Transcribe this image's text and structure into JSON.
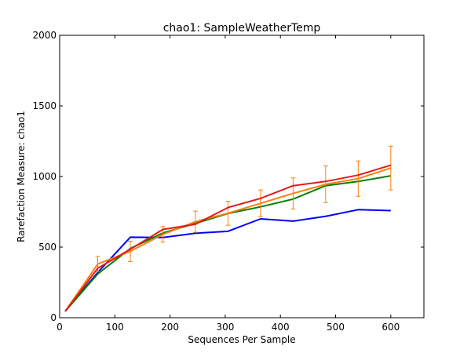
{
  "chart_data": {
    "type": "line",
    "title": "chao1: SampleWeatherTemp",
    "xlabel": "Sequences Per Sample",
    "ylabel": "Rarefaction Measure: chao1",
    "xlim": [
      0,
      660
    ],
    "ylim": [
      0,
      2000
    ],
    "xticks": [
      0,
      100,
      200,
      300,
      400,
      500,
      600
    ],
    "yticks": [
      0,
      500,
      1000,
      1500,
      2000
    ],
    "grid": false,
    "x": [
      10,
      69,
      128,
      187,
      246,
      305,
      364,
      423,
      482,
      541,
      600
    ],
    "series": [
      {
        "color": "#0000ff",
        "values": [
          45,
          320,
          570,
          568,
          598,
          612,
          700,
          684,
          718,
          765,
          758
        ],
        "err": [
          0,
          0,
          0,
          0,
          0,
          0,
          0,
          0,
          0,
          0,
          0
        ]
      },
      {
        "color": "#008000",
        "values": [
          45,
          310,
          490,
          600,
          668,
          738,
          785,
          840,
          935,
          965,
          1005
        ],
        "err": [
          0,
          0,
          0,
          0,
          0,
          0,
          0,
          0,
          0,
          0,
          0
        ]
      },
      {
        "color": "#ff7f0e",
        "values": [
          45,
          380,
          470,
          590,
          680,
          740,
          810,
          880,
          945,
          985,
          1060
        ],
        "err": [
          0,
          55,
          72,
          55,
          75,
          85,
          95,
          110,
          130,
          125,
          155
        ]
      },
      {
        "color": "#e31a1c",
        "values": [
          45,
          350,
          485,
          625,
          662,
          780,
          845,
          935,
          965,
          1010,
          1080
        ],
        "err": [
          0,
          0,
          0,
          0,
          0,
          0,
          0,
          0,
          0,
          0,
          0
        ]
      }
    ]
  }
}
